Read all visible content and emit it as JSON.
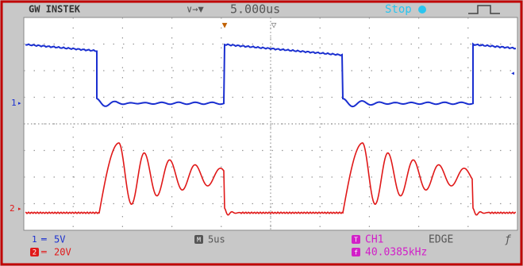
{
  "header": {
    "brand": "GW INSTEK",
    "timebase": "5.000us",
    "status": "Stop"
  },
  "markers": {
    "ch1": "1",
    "ch2": "2"
  },
  "footer": {
    "ch1_badge": "1",
    "ch1_scale": "5V",
    "ch2_badge": "2",
    "ch2_scale": "20V",
    "horizontal_badge": "M",
    "horizontal": "5us",
    "trigger_badge": "T",
    "trigger_source": "CH1",
    "trigger_type": "EDGE",
    "frequency_badge": "f",
    "frequency": "40.0385kHz"
  }
}
